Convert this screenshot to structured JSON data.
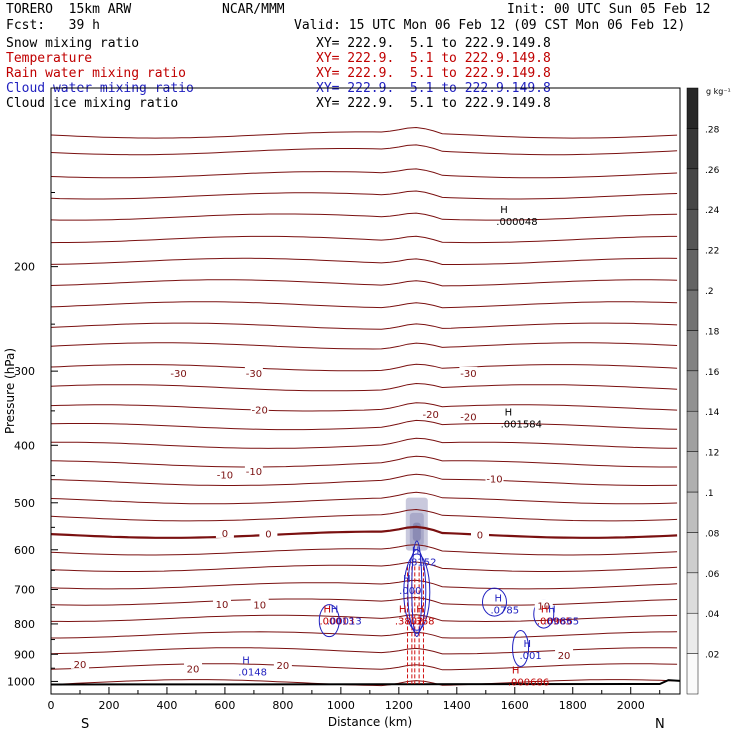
{
  "header": {
    "model": "TORERO  15km ARW",
    "forecast": "Fcst:   39 h",
    "center": "NCAR/MMM",
    "init": "Init: 00 UTC Sun 05 Feb 12",
    "valid": "Valid: 15 UTC Mon 06 Feb 12 (09 CST Mon 06 Feb 12)"
  },
  "fields": [
    {
      "name": "Snow mixing ratio",
      "xy": "XY= 222.9.  5.1 to 222.9.149.8",
      "color": "#000000"
    },
    {
      "name": "Temperature",
      "xy": "XY= 222.9.  5.1 to 222.9.149.8",
      "color": "#c00000"
    },
    {
      "name": "Rain water mixing ratio",
      "xy": "XY= 222.9.  5.1 to 222.9.149.8",
      "color": "#c00000"
    },
    {
      "name": "Cloud water mixing ratio",
      "xy": "XY= 222.9.  5.1 to 222.9.149.8",
      "color": "#1f1fbf"
    },
    {
      "name": "Cloud ice mixing ratio",
      "xy": "XY= 222.9.  5.1 to 222.9.149.8",
      "color": "#000000"
    }
  ],
  "chart_data": {
    "type": "cross-section contour",
    "xlabel": "Distance (km)",
    "ylabel": "Pressure (hPa)",
    "xlim": [
      0,
      2170
    ],
    "ylim": [
      1050,
      100
    ],
    "y_scale": "log",
    "x_ticks": [
      0,
      200,
      400,
      600,
      800,
      1000,
      1200,
      1400,
      1600,
      1800,
      2000
    ],
    "y_ticks": [
      200,
      300,
      400,
      500,
      600,
      700,
      800,
      900,
      1000
    ],
    "x_ends": {
      "left": "S",
      "right": "N"
    },
    "colorbar": {
      "units": "g kg⁻¹",
      "ticks": [
        ".02",
        ".04",
        ".06",
        ".08",
        ".1",
        ".12",
        ".14",
        ".16",
        ".18",
        ".2",
        ".22",
        ".24",
        ".26",
        ".28"
      ]
    },
    "temperature_labels": [
      {
        "text": "-30",
        "x": 440,
        "p": 302
      },
      {
        "text": "-30",
        "x": 700,
        "p": 302
      },
      {
        "text": "-30",
        "x": 1440,
        "p": 302
      },
      {
        "text": "-20",
        "x": 720,
        "p": 348
      },
      {
        "text": "-20",
        "x": 1310,
        "p": 354
      },
      {
        "text": "-20",
        "x": 1440,
        "p": 358
      },
      {
        "text": "-10",
        "x": 600,
        "p": 448
      },
      {
        "text": "-10",
        "x": 700,
        "p": 442
      },
      {
        "text": "-10",
        "x": 1530,
        "p": 455
      },
      {
        "text": "0",
        "x": 600,
        "p": 562
      },
      {
        "text": "0",
        "x": 750,
        "p": 563
      },
      {
        "text": "0",
        "x": 1480,
        "p": 566
      },
      {
        "text": "10",
        "x": 590,
        "p": 740
      },
      {
        "text": "10",
        "x": 720,
        "p": 742
      },
      {
        "text": "10",
        "x": 1700,
        "p": 745
      },
      {
        "text": "20",
        "x": 100,
        "p": 934
      },
      {
        "text": "20",
        "x": 490,
        "p": 952
      },
      {
        "text": "20",
        "x": 800,
        "p": 938
      },
      {
        "text": "20",
        "x": 1770,
        "p": 902
      }
    ],
    "extrema": [
      {
        "mark": "H",
        "value": ".000048",
        "x": 1550,
        "p": 165,
        "color": "#000000"
      },
      {
        "mark": "H",
        "value": ".001584",
        "x": 1565,
        "p": 362,
        "color": "#000000"
      },
      {
        "mark": "H",
        "value": ".8152",
        "x": 1245,
        "p": 618,
        "color": "#1f1fbf"
      },
      {
        "mark": "H",
        "value": ".000",
        "x": 1215,
        "p": 690,
        "color": "#1f1fbf"
      },
      {
        "mark": "H",
        "value": ".0785",
        "x": 1530,
        "p": 745,
        "color": "#1f1fbf"
      },
      {
        "mark": "H",
        "value": ".00013",
        "x": 940,
        "p": 778,
        "color": "#c00000"
      },
      {
        "mark": "H",
        "value": ".00013",
        "x": 965,
        "p": 778,
        "color": "#1f1fbf"
      },
      {
        "mark": "H",
        "value": ".3802",
        "x": 1200,
        "p": 778,
        "color": "#c00000"
      },
      {
        "mark": "H",
        "value": ".368",
        "x": 1260,
        "p": 778,
        "color": "#c00000"
      },
      {
        "mark": "H",
        "value": ".00965",
        "x": 1690,
        "p": 778,
        "color": "#c00000"
      },
      {
        "mark": "H",
        "value": ".00865",
        "x": 1715,
        "p": 778,
        "color": "#1f1fbf"
      },
      {
        "mark": "H",
        "value": ".0148",
        "x": 660,
        "p": 948,
        "color": "#1f1fbf"
      },
      {
        "mark": "H",
        "value": ".001",
        "x": 1630,
        "p": 888,
        "color": "#1f1fbf"
      },
      {
        "mark": "H",
        "value": ".000686",
        "x": 1590,
        "p": 985,
        "color": "#c00000"
      }
    ],
    "grid": false
  }
}
